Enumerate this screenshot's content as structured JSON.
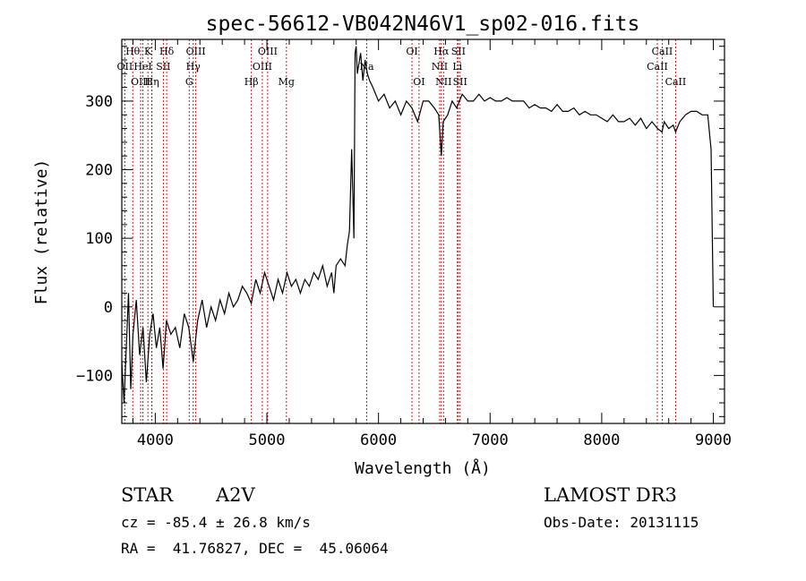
{
  "header": {
    "title": "spec-56612-VB042N46V1_sp02-016.fits"
  },
  "footer": {
    "class_label": "STAR",
    "subclass": "A2V",
    "survey": "LAMOST DR3",
    "redshift_line": "cz = -85.4 ± 26.8 km/s",
    "obs_date_line": "Obs-Date: 20131115",
    "coords_line": "RA =  41.76827, DEC =  45.06064"
  },
  "chart_data": {
    "type": "line",
    "title": "spec-56612-VB042N46V1_sp02-016.fits",
    "xlabel": "Wavelength (Å)",
    "ylabel": "Flux (relative)",
    "xlim": [
      3700,
      9100
    ],
    "ylim": [
      -170,
      390
    ],
    "xticks": [
      4000,
      5000,
      6000,
      7000,
      8000,
      9000
    ],
    "xtick_labels": [
      "4000",
      "5000",
      "6000",
      "7000",
      "8000",
      "9000"
    ],
    "yticks": [
      -100,
      0,
      100,
      200,
      300
    ],
    "ytick_labels": [
      "−100",
      "0",
      "100",
      "200",
      "300"
    ],
    "colors": {
      "line": "#000000",
      "marker": "#cc0000"
    },
    "series": [
      {
        "name": "flux",
        "x": [
          3700,
          3720,
          3740,
          3760,
          3780,
          3800,
          3830,
          3860,
          3890,
          3920,
          3950,
          3980,
          4010,
          4040,
          4070,
          4100,
          4140,
          4180,
          4220,
          4260,
          4300,
          4340,
          4380,
          4420,
          4460,
          4500,
          4540,
          4580,
          4620,
          4660,
          4700,
          4740,
          4780,
          4820,
          4860,
          4900,
          4940,
          4980,
          5020,
          5060,
          5100,
          5140,
          5180,
          5220,
          5260,
          5300,
          5340,
          5380,
          5420,
          5460,
          5500,
          5540,
          5580,
          5600,
          5620,
          5660,
          5700,
          5720,
          5740,
          5760,
          5780,
          5790,
          5800,
          5810,
          5820,
          5830,
          5840,
          5860,
          5880,
          5900,
          5920,
          5950,
          6000,
          6050,
          6100,
          6150,
          6200,
          6250,
          6300,
          6350,
          6400,
          6450,
          6500,
          6540,
          6563,
          6580,
          6620,
          6660,
          6700,
          6750,
          6800,
          6850,
          6900,
          6950,
          7000,
          7050,
          7100,
          7150,
          7200,
          7250,
          7300,
          7350,
          7400,
          7450,
          7500,
          7550,
          7600,
          7650,
          7700,
          7750,
          7800,
          7850,
          7900,
          7950,
          8000,
          8050,
          8100,
          8150,
          8200,
          8250,
          8300,
          8350,
          8400,
          8450,
          8500,
          8540,
          8560,
          8600,
          8640,
          8662,
          8700,
          8750,
          8800,
          8850,
          8900,
          8950,
          8980,
          9000
        ],
        "y": [
          -80,
          -140,
          -60,
          20,
          -120,
          -40,
          10,
          -70,
          -30,
          -110,
          -40,
          -10,
          -60,
          -30,
          -90,
          -20,
          -40,
          -30,
          -60,
          -10,
          -30,
          -80,
          -20,
          10,
          -30,
          0,
          -20,
          10,
          -10,
          20,
          0,
          10,
          30,
          20,
          5,
          40,
          20,
          50,
          30,
          10,
          40,
          20,
          50,
          30,
          40,
          20,
          40,
          30,
          50,
          40,
          60,
          30,
          50,
          20,
          60,
          70,
          60,
          90,
          110,
          230,
          100,
          370,
          380,
          340,
          350,
          360,
          370,
          330,
          360,
          340,
          330,
          320,
          300,
          310,
          290,
          300,
          280,
          300,
          290,
          270,
          300,
          300,
          290,
          280,
          220,
          270,
          280,
          300,
          290,
          310,
          300,
          300,
          310,
          300,
          305,
          300,
          300,
          305,
          300,
          300,
          300,
          290,
          295,
          290,
          290,
          285,
          295,
          285,
          285,
          290,
          280,
          285,
          280,
          280,
          275,
          270,
          280,
          270,
          270,
          275,
          265,
          275,
          260,
          270,
          260,
          255,
          270,
          260,
          265,
          255,
          270,
          280,
          285,
          285,
          280,
          280,
          230,
          0
        ]
      }
    ],
    "markers": [
      {
        "name": "OII",
        "wl": 3727,
        "row": 2
      },
      {
        "name": "Hθ",
        "wl": 3798,
        "row": 1
      },
      {
        "name": "OIII",
        "wl": 3869,
        "row": 3
      },
      {
        "name": "HeI",
        "wl": 3889,
        "row": 2
      },
      {
        "name": "K",
        "wl": 3934,
        "row": 1
      },
      {
        "name": "Hη",
        "wl": 3970,
        "row": 3
      },
      {
        "name": "H",
        "wl": 3969,
        "row": 3,
        "label_hidden": true
      },
      {
        "name": "SII",
        "wl": 4072,
        "row": 2
      },
      {
        "name": "Hδ",
        "wl": 4102,
        "row": 1
      },
      {
        "name": "G",
        "wl": 4304,
        "row": 3
      },
      {
        "name": "Hγ",
        "wl": 4340,
        "row": 2
      },
      {
        "name": "OIII",
        "wl": 4363,
        "row": 1
      },
      {
        "name": "Hβ",
        "wl": 4861,
        "row": 3
      },
      {
        "name": "OIII",
        "wl": 4959,
        "row": 2
      },
      {
        "name": "OIII",
        "wl": 5007,
        "row": 1
      },
      {
        "name": "Mg",
        "wl": 5175,
        "row": 3
      },
      {
        "name": "Na",
        "wl": 5894,
        "row": 2
      },
      {
        "name": "OI",
        "wl": 6300,
        "row": 1
      },
      {
        "name": "OI",
        "wl": 6363,
        "row": 3
      },
      {
        "name": "NII",
        "wl": 6548,
        "row": 2
      },
      {
        "name": "Hα",
        "wl": 6563,
        "row": 1
      },
      {
        "name": "NII",
        "wl": 6583,
        "row": 3
      },
      {
        "name": "Li",
        "wl": 6707,
        "row": 2
      },
      {
        "name": "SII",
        "wl": 6716,
        "row": 1
      },
      {
        "name": "SII",
        "wl": 6731,
        "row": 3
      },
      {
        "name": "CaII",
        "wl": 8498,
        "row": 2
      },
      {
        "name": "CaII",
        "wl": 8542,
        "row": 1
      },
      {
        "name": "CaII",
        "wl": 8662,
        "row": 3
      }
    ]
  }
}
